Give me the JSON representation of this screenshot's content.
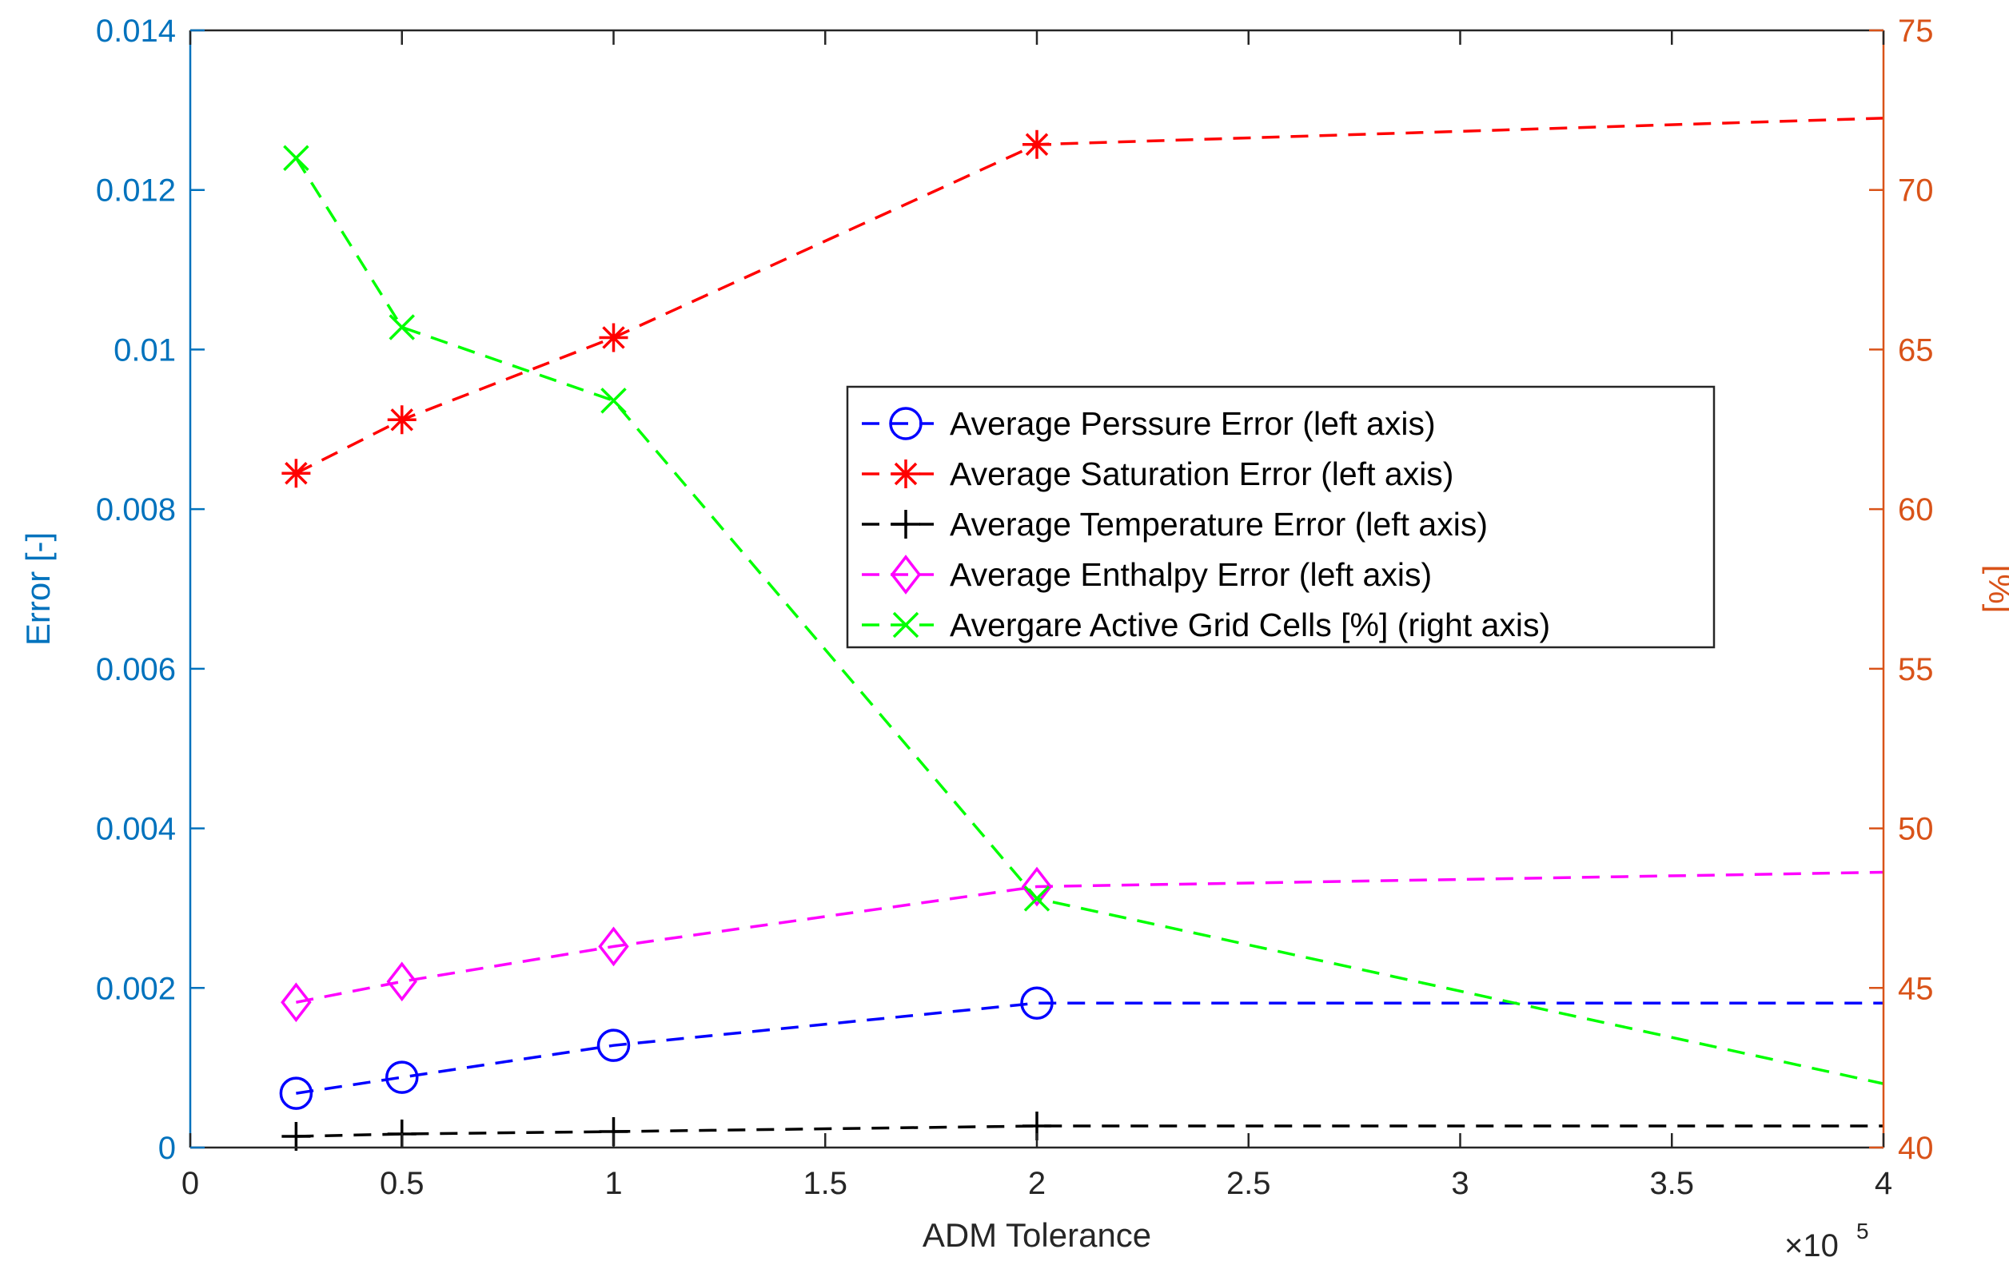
{
  "chart_data": {
    "type": "line",
    "xlabel": "ADM Tolerance",
    "x_multiplier": "×10",
    "x_multiplier_exp": "5",
    "ylabel_left": "Error [-]",
    "ylabel_right": "[%]",
    "xlim": [
      0,
      4
    ],
    "ylim_left": [
      0,
      0.014
    ],
    "ylim_right": [
      40,
      75
    ],
    "x_ticks": [
      "0",
      "0.5",
      "1",
      "1.5",
      "2",
      "2.5",
      "3",
      "3.5",
      "4"
    ],
    "x_tick_values": [
      0,
      0.5,
      1,
      1.5,
      2,
      2.5,
      3,
      3.5,
      4
    ],
    "y_left_ticks": [
      "0",
      "0.002",
      "0.004",
      "0.006",
      "0.008",
      "0.01",
      "0.012",
      "0.014"
    ],
    "y_left_tick_values": [
      0,
      0.002,
      0.004,
      0.006,
      0.008,
      0.01,
      0.012,
      0.014
    ],
    "y_right_ticks": [
      "40",
      "45",
      "50",
      "55",
      "60",
      "65",
      "70",
      "75"
    ],
    "y_right_tick_values": [
      40,
      45,
      50,
      55,
      60,
      65,
      70,
      75
    ],
    "x": [
      0.25,
      0.5,
      1,
      2,
      4
    ],
    "series": [
      {
        "name": "Average Perssure Error (left axis)",
        "axis": "left",
        "color": "#0000FF",
        "marker": "circle",
        "values": [
          0.00068,
          0.00088,
          0.00128,
          0.00181,
          0.00181
        ]
      },
      {
        "name": "Average Saturation Error (left axis)",
        "axis": "left",
        "color": "#FF0000",
        "marker": "asterisk",
        "values": [
          0.00845,
          0.00912,
          0.01015,
          0.01257,
          0.0129
        ]
      },
      {
        "name": "Average Temperature Error (left axis)",
        "axis": "left",
        "color": "#000000",
        "marker": "plus",
        "values": [
          0.00014,
          0.00017,
          0.0002,
          0.00027,
          0.00027
        ]
      },
      {
        "name": "Average Enthalpy Error (left axis)",
        "axis": "left",
        "color": "#FF00FF",
        "marker": "diamond",
        "values": [
          0.00182,
          0.00208,
          0.00252,
          0.00327,
          0.00345
        ]
      },
      {
        "name": "Avergare Active Grid Cells [%] (right axis)",
        "axis": "right",
        "color": "#00FF00",
        "marker": "x",
        "values": [
          71.0,
          65.7,
          63.4,
          47.8,
          42.0
        ]
      }
    ],
    "legend_position": "center-right",
    "grid": false
  }
}
